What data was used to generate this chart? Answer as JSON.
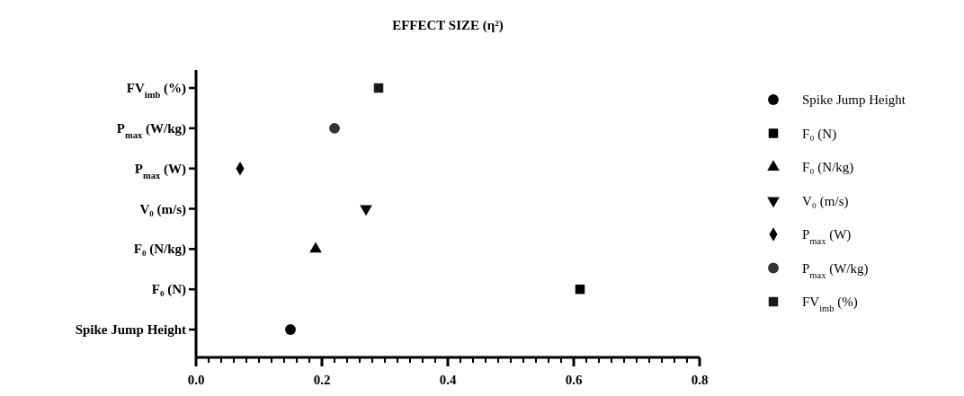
{
  "chart_data": {
    "type": "scatter",
    "title": "EFFECT SIZE (η²)",
    "orientation": "horizontal",
    "categories": [
      "FV$_{imb}$ (%)",
      "P$_{max}$ (W/kg)",
      "P$_{max}$ (W)",
      "V₀ (m/s)",
      "F₀ (N/kg)",
      "F₀ (N)",
      "Spike Jump Height"
    ],
    "xlim": [
      0,
      0.8
    ],
    "xticks": [
      {
        "value": 0,
        "label": "0.0"
      },
      {
        "value": 0.02,
        "label": null
      },
      {
        "value": 0.04,
        "label": null
      },
      {
        "value": 0.06,
        "label": null
      },
      {
        "value": 0.08,
        "label": null
      },
      {
        "value": 0.1,
        "label": null
      },
      {
        "value": 0.12,
        "label": null
      },
      {
        "value": 0.14,
        "label": null
      },
      {
        "value": 0.16,
        "label": null
      },
      {
        "value": 0.18,
        "label": null
      },
      {
        "value": 0.2,
        "label": "0.2"
      },
      {
        "value": 0.22,
        "label": null
      },
      {
        "value": 0.24,
        "label": null
      },
      {
        "value": 0.26,
        "label": null
      },
      {
        "value": 0.28,
        "label": null
      },
      {
        "value": 0.3,
        "label": null
      },
      {
        "value": 0.32,
        "label": null
      },
      {
        "value": 0.34,
        "label": null
      },
      {
        "value": 0.36,
        "label": null
      },
      {
        "value": 0.38,
        "label": null
      },
      {
        "value": 0.4,
        "label": "0.4"
      },
      {
        "value": 0.42,
        "label": null
      },
      {
        "value": 0.44,
        "label": null
      },
      {
        "value": 0.46,
        "label": null
      },
      {
        "value": 0.48,
        "label": null
      },
      {
        "value": 0.5,
        "label": null
      },
      {
        "value": 0.52,
        "label": null
      },
      {
        "value": 0.54,
        "label": null
      },
      {
        "value": 0.56,
        "label": null
      },
      {
        "value": 0.58,
        "label": null
      },
      {
        "value": 0.6,
        "label": "0.6"
      },
      {
        "value": 0.62,
        "label": null
      },
      {
        "value": 0.64,
        "label": null
      },
      {
        "value": 0.66,
        "label": null
      },
      {
        "value": 0.68,
        "label": null
      },
      {
        "value": 0.7,
        "label": null
      },
      {
        "value": 0.72,
        "label": null
      },
      {
        "value": 0.74,
        "label": null
      },
      {
        "value": 0.76,
        "label": null
      },
      {
        "value": 0.78,
        "label": null
      },
      {
        "value": 0.8,
        "label": "0.8"
      }
    ],
    "legend": "right",
    "grid": false,
    "series": [
      {
        "name": "Spike Jump Height",
        "color": "#000000",
        "marker": "circle",
        "values": [
          null,
          null,
          null,
          null,
          null,
          null,
          0.15
        ]
      },
      {
        "name": "F₀ (N)",
        "color": "#000000",
        "marker": "square",
        "values": [
          null,
          null,
          null,
          null,
          null,
          0.61,
          null
        ]
      },
      {
        "name": "F₀ (N/kg)",
        "color": "#000000",
        "marker": "triangle",
        "values": [
          null,
          null,
          null,
          null,
          0.19,
          null,
          null
        ]
      },
      {
        "name": "V₀ (m/s)",
        "color": "#000000",
        "marker": "triangle-down",
        "values": [
          null,
          null,
          null,
          0.27,
          null,
          null,
          null
        ]
      },
      {
        "name": "P$_{max}$ (W)",
        "color": "#000000",
        "marker": "diamond",
        "values": [
          null,
          null,
          0.07,
          null,
          null,
          null,
          null
        ]
      },
      {
        "name": "P$_{max}$ (W/kg)",
        "color": "#333333",
        "marker": "circle",
        "values": [
          null,
          0.22,
          null,
          null,
          null,
          null,
          null
        ]
      },
      {
        "name": "FV$_{imb}$ (%)",
        "color": "#1a1a1a",
        "marker": "square",
        "values": [
          0.29,
          null,
          null,
          null,
          null,
          null,
          null
        ]
      }
    ]
  }
}
